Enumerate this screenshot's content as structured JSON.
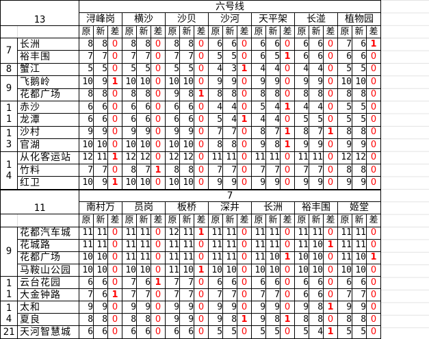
{
  "top": {
    "corner": "13",
    "line_title": "六号线",
    "stations": [
      "浔峰岗",
      "横沙",
      "沙贝",
      "沙河",
      "天平架",
      "长湴",
      "植物园"
    ],
    "sub_headers": [
      "原",
      "新",
      "差"
    ],
    "groups": [
      {
        "label": "7",
        "rows": [
          {
            "name": "长洲",
            "values": [
              [
                8,
                8,
                0
              ],
              [
                8,
                8,
                0
              ],
              [
                8,
                8,
                0
              ],
              [
                6,
                6,
                0
              ],
              [
                6,
                6,
                0
              ],
              [
                6,
                6,
                0
              ],
              [
                7,
                6,
                1
              ]
            ]
          },
          {
            "name": "裕丰围",
            "values": [
              [
                7,
                7,
                0
              ],
              [
                7,
                7,
                0
              ],
              [
                7,
                7,
                0
              ],
              [
                5,
                5,
                0
              ],
              [
                6,
                5,
                1
              ],
              [
                6,
                6,
                0
              ],
              [
                6,
                6,
                0
              ]
            ]
          }
        ]
      },
      {
        "label": "8",
        "rows": [
          {
            "name": "蟹江",
            "values": [
              [
                5,
                5,
                0
              ],
              [
                5,
                5,
                0
              ],
              [
                5,
                5,
                0
              ],
              [
                4,
                3,
                1
              ],
              [
                4,
                4,
                0
              ],
              [
                4,
                4,
                0
              ],
              [
                5,
                5,
                0
              ]
            ]
          }
        ]
      },
      {
        "label": "9",
        "rows": [
          {
            "name": "飞鹅岭",
            "values": [
              [
                10,
                9,
                1
              ],
              [
                10,
                10,
                0
              ],
              [
                10,
                10,
                0
              ],
              [
                9,
                9,
                0
              ],
              [
                9,
                9,
                0
              ],
              [
                9,
                9,
                0
              ],
              [
                10,
                10,
                0
              ]
            ]
          },
          {
            "name": "花都广场",
            "values": [
              [
                8,
                8,
                0
              ],
              [
                8,
                8,
                0
              ],
              [
                9,
                8,
                1
              ],
              [
                8,
                8,
                0
              ],
              [
                8,
                8,
                0
              ],
              [
                8,
                8,
                0
              ],
              [
                8,
                8,
                0
              ]
            ]
          }
        ]
      },
      {
        "label": "11",
        "rows": [
          {
            "name": "赤沙",
            "values": [
              [
                6,
                6,
                0
              ],
              [
                6,
                6,
                0
              ],
              [
                6,
                6,
                0
              ],
              [
                4,
                4,
                0
              ],
              [
                5,
                4,
                1
              ],
              [
                4,
                4,
                0
              ],
              [
                5,
                5,
                0
              ]
            ]
          },
          {
            "name": "龙潭",
            "values": [
              [
                6,
                6,
                0
              ],
              [
                6,
                6,
                0
              ],
              [
                6,
                6,
                0
              ],
              [
                5,
                4,
                1
              ],
              [
                4,
                4,
                0
              ],
              [
                5,
                5,
                0
              ],
              [
                5,
                5,
                0
              ]
            ]
          }
        ]
      },
      {
        "label": "13",
        "rows": [
          {
            "name": "沙村",
            "values": [
              [
                9,
                9,
                0
              ],
              [
                9,
                9,
                0
              ],
              [
                9,
                9,
                0
              ],
              [
                7,
                7,
                0
              ],
              [
                8,
                7,
                1
              ],
              [
                8,
                7,
                1
              ],
              [
                8,
                8,
                0
              ]
            ]
          },
          {
            "name": "官湖",
            "values": [
              [
                10,
                10,
                0
              ],
              [
                10,
                10,
                0
              ],
              [
                10,
                10,
                0
              ],
              [
                8,
                8,
                0
              ],
              [
                9,
                8,
                1
              ],
              [
                9,
                9,
                0
              ],
              [
                9,
                9,
                0
              ]
            ]
          }
        ]
      },
      {
        "label": "14",
        "rows": [
          {
            "name": "从化客运站",
            "values": [
              [
                12,
                11,
                1
              ],
              [
                12,
                12,
                0
              ],
              [
                12,
                12,
                0
              ],
              [
                11,
                11,
                0
              ],
              [
                11,
                11,
                0
              ],
              [
                11,
                11,
                0
              ],
              [
                12,
                12,
                0
              ]
            ]
          },
          {
            "name": "竹料",
            "values": [
              [
                7,
                7,
                0
              ],
              [
                8,
                7,
                1
              ],
              [
                8,
                8,
                0
              ],
              [
                7,
                7,
                0
              ],
              [
                7,
                7,
                0
              ],
              [
                7,
                7,
                0
              ],
              [
                8,
                8,
                0
              ]
            ]
          },
          {
            "name": "红卫",
            "values": [
              [
                10,
                9,
                1
              ],
              [
                10,
                10,
                0
              ],
              [
                10,
                10,
                0
              ],
              [
                9,
                9,
                0
              ],
              [
                9,
                9,
                0
              ],
              [
                9,
                9,
                0
              ],
              [
                9,
                9,
                0
              ]
            ]
          }
        ]
      }
    ]
  },
  "bottom": {
    "corner": "11",
    "line_title": "7",
    "stations": [
      "南村万",
      "员岗",
      "板桥",
      "深井",
      "长洲",
      "裕丰围",
      "姬堂"
    ],
    "sub_headers": [
      "原",
      "新",
      "差"
    ],
    "groups": [
      {
        "label": "9",
        "rows": [
          {
            "name": "花都汽车城",
            "values": [
              [
                11,
                11,
                0
              ],
              [
                11,
                11,
                0
              ],
              [
                12,
                11,
                1
              ],
              [
                11,
                11,
                0
              ],
              [
                11,
                11,
                0
              ],
              [
                11,
                11,
                0
              ],
              [
                11,
                11,
                0
              ]
            ]
          },
          {
            "name": "花城路",
            "values": [
              [
                11,
                11,
                0
              ],
              [
                11,
                11,
                0
              ],
              [
                11,
                11,
                0
              ],
              [
                11,
                11,
                0
              ],
              [
                11,
                11,
                0
              ],
              [
                11,
                10,
                1
              ],
              [
                11,
                11,
                0
              ]
            ]
          },
          {
            "name": "花都广场",
            "values": [
              [
                10,
                10,
                0
              ],
              [
                11,
                11,
                0
              ],
              [
                11,
                11,
                0
              ],
              [
                11,
                11,
                0
              ],
              [
                11,
                10,
                1
              ],
              [
                10,
                10,
                0
              ],
              [
                11,
                10,
                1
              ]
            ]
          },
          {
            "name": "马鞍山公园",
            "values": [
              [
                10,
                10,
                0
              ],
              [
                10,
                10,
                0
              ],
              [
                11,
                10,
                1
              ],
              [
                10,
                10,
                0
              ],
              [
                10,
                10,
                0
              ],
              [
                10,
                10,
                0
              ],
              [
                10,
                10,
                0
              ]
            ]
          }
        ]
      },
      {
        "label": "11",
        "rows": [
          {
            "name": "云台花园",
            "values": [
              [
                6,
                6,
                0
              ],
              [
                7,
                6,
                1
              ],
              [
                7,
                7,
                0
              ],
              [
                6,
                6,
                0
              ],
              [
                6,
                6,
                0
              ],
              [
                6,
                6,
                0
              ],
              [
                6,
                6,
                0
              ]
            ]
          },
          {
            "name": "大金钟路",
            "values": [
              [
                7,
                6,
                1
              ],
              [
                7,
                7,
                0
              ],
              [
                7,
                7,
                0
              ],
              [
                7,
                7,
                0
              ],
              [
                7,
                7,
                0
              ],
              [
                6,
                6,
                0
              ],
              [
                7,
                7,
                0
              ]
            ]
          }
        ]
      },
      {
        "label": "14",
        "rows": [
          {
            "name": "太和",
            "values": [
              [
                9,
                9,
                0
              ],
              [
                9,
                9,
                0
              ],
              [
                9,
                9,
                0
              ],
              [
                9,
                9,
                0
              ],
              [
                9,
                9,
                0
              ],
              [
                9,
                8,
                1
              ],
              [
                9,
                9,
                0
              ]
            ]
          },
          {
            "name": "夏良",
            "values": [
              [
                8,
                8,
                0
              ],
              [
                8,
                8,
                0
              ],
              [
                9,
                9,
                0
              ],
              [
                9,
                8,
                1
              ],
              [
                9,
                8,
                1
              ],
              [
                8,
                8,
                0
              ],
              [
                8,
                8,
                0
              ]
            ]
          }
        ]
      },
      {
        "label": "21",
        "rows": [
          {
            "name": "天河智慧城",
            "values": [
              [
                6,
                6,
                0
              ],
              [
                6,
                6,
                0
              ],
              [
                6,
                6,
                0
              ],
              [
                5,
                5,
                0
              ],
              [
                5,
                5,
                0
              ],
              [
                5,
                4,
                1
              ],
              [
                5,
                5,
                0
              ]
            ]
          }
        ]
      }
    ]
  }
}
